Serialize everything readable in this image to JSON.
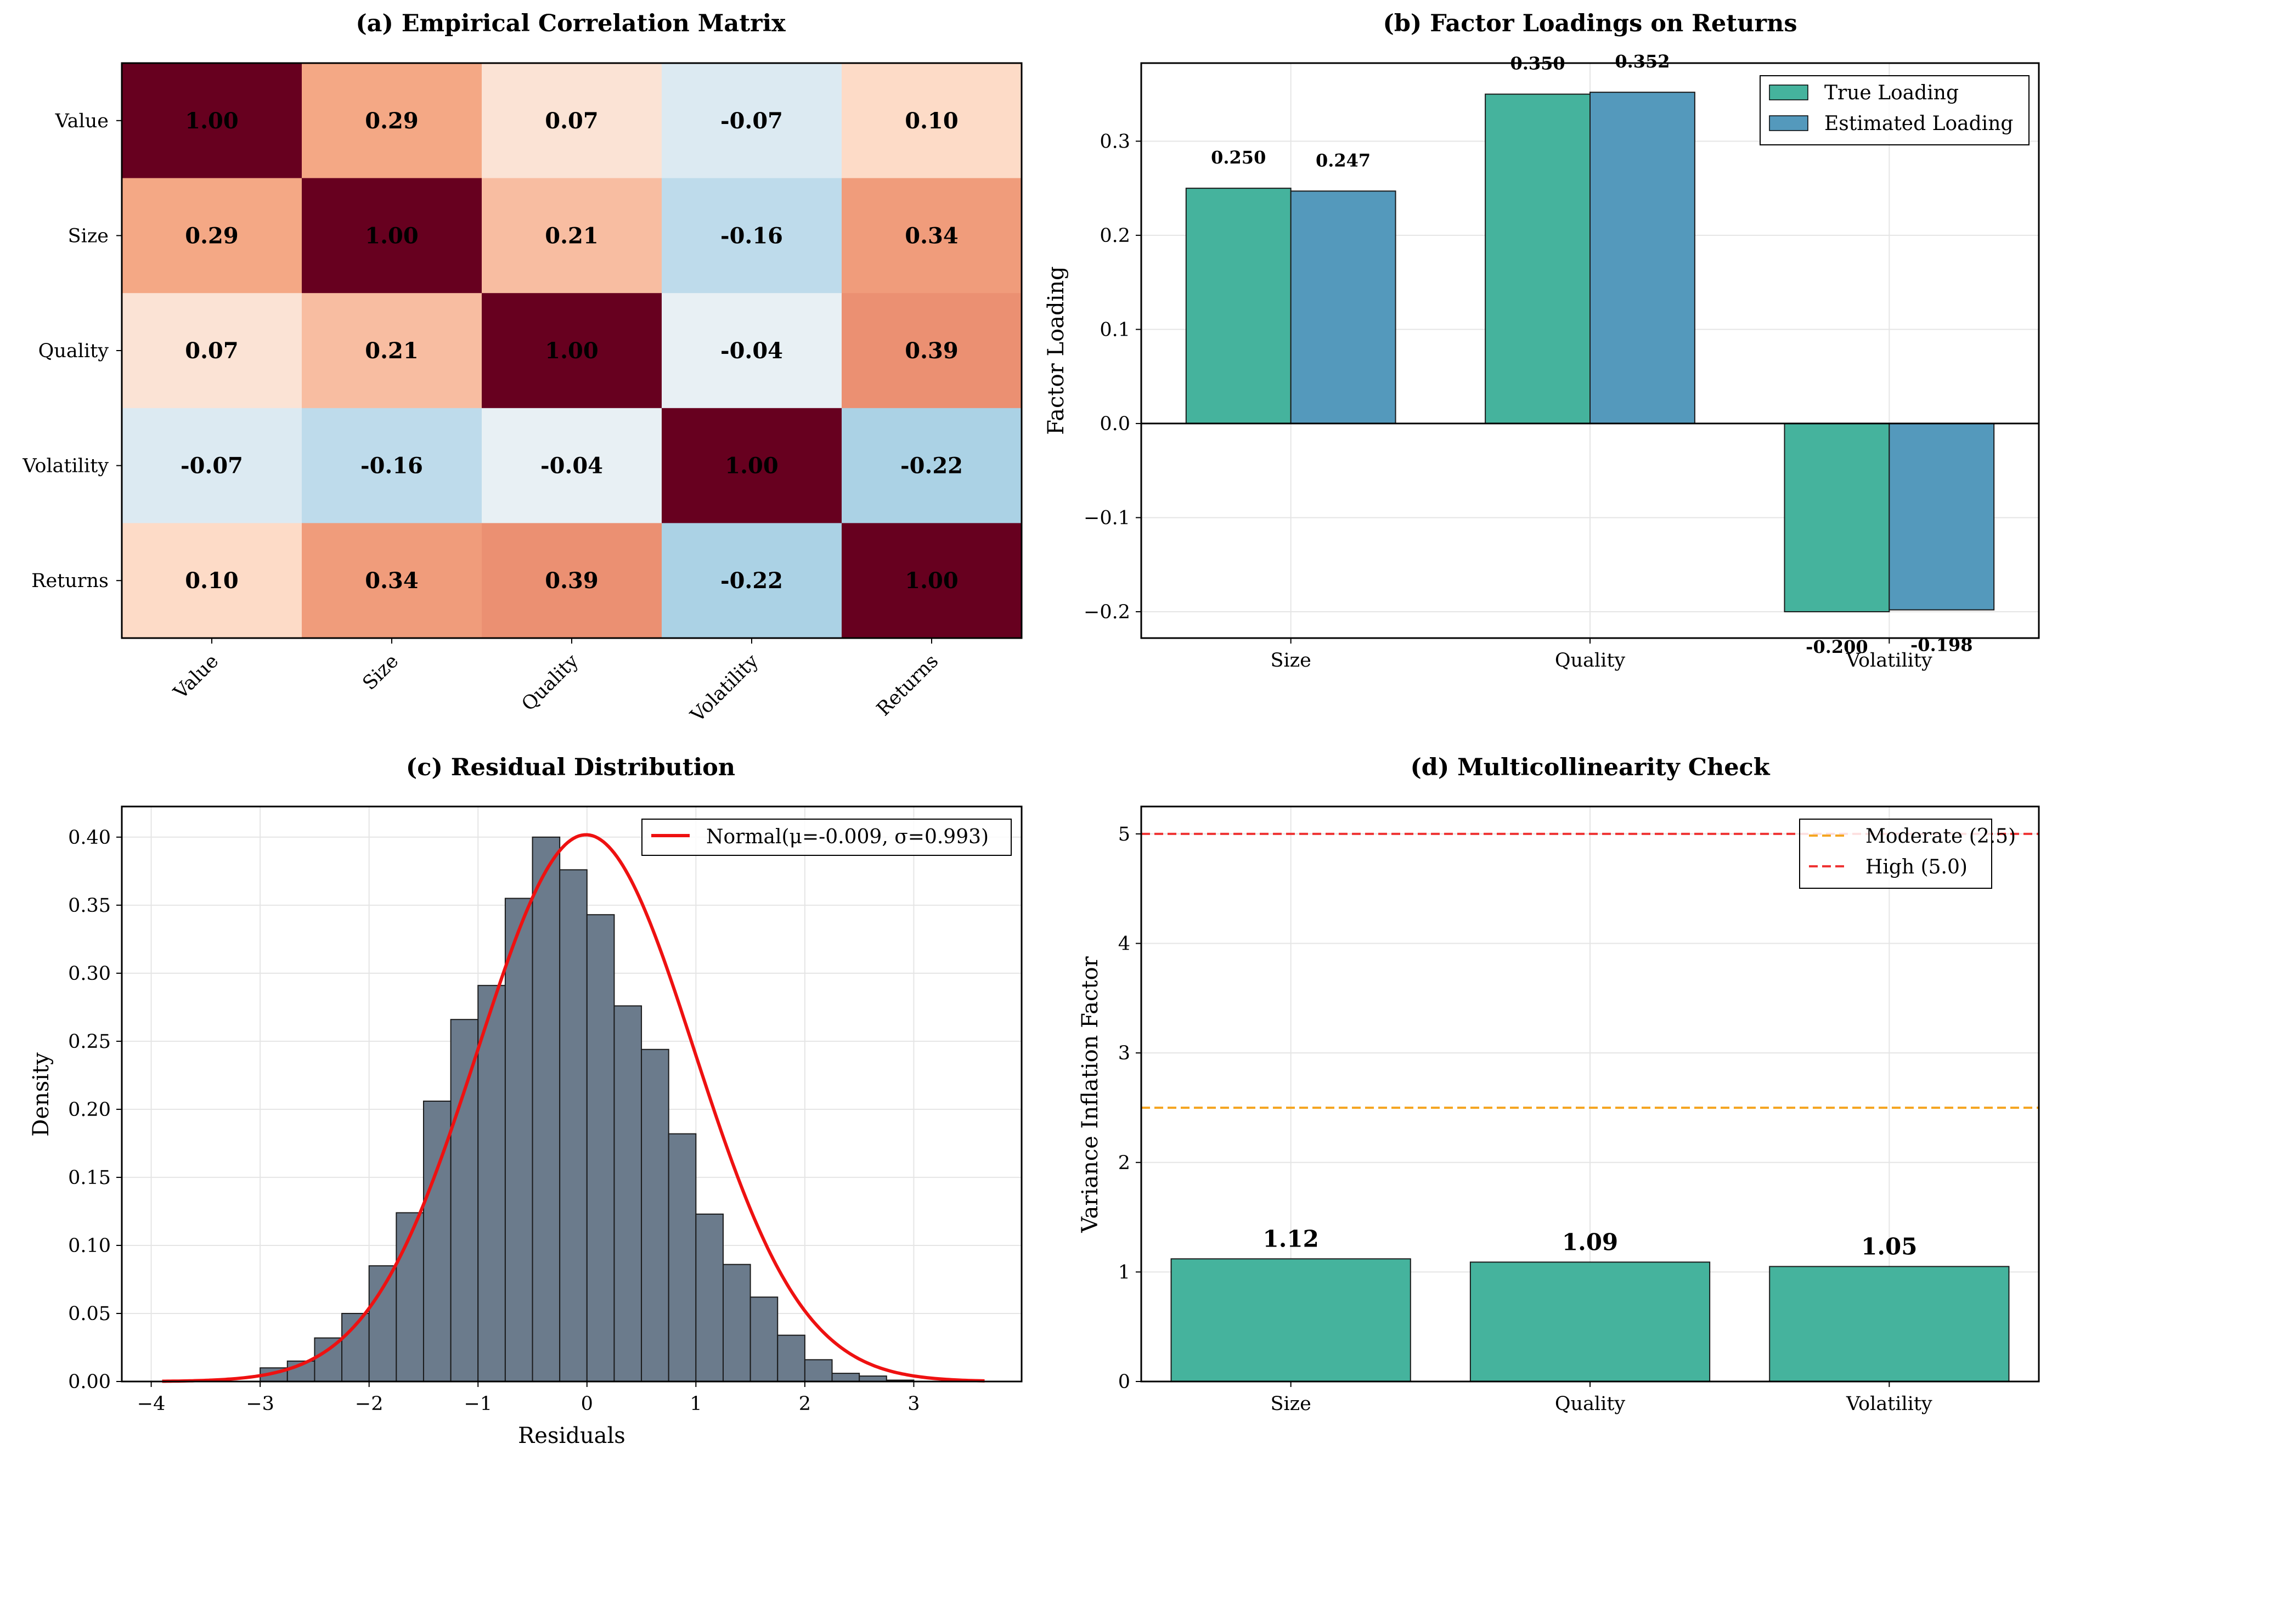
{
  "chart_data": [
    {
      "type": "heatmap",
      "title": "(a) Empirical Correlation Matrix",
      "labels": [
        "Value",
        "Size",
        "Quality",
        "Volatility",
        "Returns"
      ],
      "matrix": [
        [
          1.0,
          0.29,
          0.07,
          -0.07,
          0.1
        ],
        [
          0.29,
          1.0,
          0.21,
          -0.16,
          0.34
        ],
        [
          0.07,
          0.21,
          1.0,
          -0.04,
          0.39
        ],
        [
          -0.07,
          -0.16,
          -0.04,
          1.0,
          -0.22
        ],
        [
          0.1,
          0.34,
          0.39,
          -0.22,
          1.0
        ]
      ],
      "value_labels": [
        [
          "1.00",
          "0.29",
          "0.07",
          "-0.07",
          "0.10"
        ],
        [
          "0.29",
          "1.00",
          "0.21",
          "-0.16",
          "0.34"
        ],
        [
          "0.07",
          "0.21",
          "1.00",
          "-0.04",
          "0.39"
        ],
        [
          "-0.07",
          "-0.16",
          "-0.04",
          "1.00",
          "-0.22"
        ],
        [
          "0.10",
          "0.34",
          "0.39",
          "-0.22",
          "1.00"
        ]
      ],
      "colormap": "diverging red-blue",
      "clim": [
        -1,
        1
      ]
    },
    {
      "type": "bar",
      "title": "(b) Factor Loadings on Returns",
      "categories": [
        "Size",
        "Quality",
        "Volatility"
      ],
      "series": [
        {
          "name": "True Loading",
          "values": [
            0.25,
            0.35,
            -0.2
          ],
          "labels": [
            "0.250",
            "0.350",
            "-0.200"
          ],
          "color": "#45b39d"
        },
        {
          "name": "Estimated Loading",
          "values": [
            0.247,
            0.352,
            -0.198
          ],
          "labels": [
            "0.247",
            "0.352",
            "-0.198"
          ],
          "color": "#5499bc"
        }
      ],
      "ylabel": "Factor Loading",
      "xlabel": "",
      "ylim": [
        -0.228,
        0.383
      ],
      "yticks": [
        -0.2,
        -0.1,
        0.0,
        0.1,
        0.2,
        0.3
      ],
      "ytick_labels": [
        "−0.2",
        "−0.1",
        "0.0",
        "0.1",
        "0.2",
        "0.3"
      ],
      "legend": "top-right",
      "grid": true
    },
    {
      "type": "bar",
      "title": "(c) Residual Distribution",
      "subtype": "histogram",
      "bins": {
        "start": -3.0,
        "width": 0.25,
        "density": [
          0.01,
          0.015,
          0.032,
          0.05,
          0.085,
          0.124,
          0.206,
          0.266,
          0.291,
          0.355,
          0.4,
          0.376,
          0.343,
          0.276,
          0.244,
          0.182,
          0.123,
          0.086,
          0.062,
          0.034,
          0.016,
          0.006,
          0.004,
          0.001
        ]
      },
      "fit": {
        "name": "Normal(μ=-0.009, σ=0.993)",
        "mu": -0.009,
        "sigma": 0.993,
        "x_range": [
          -3.9,
          3.65
        ],
        "color": "#ee1111"
      },
      "xlabel": "Residuals",
      "ylabel": "Density",
      "xlim": [
        -4.27,
        3.99
      ],
      "ylim": [
        0,
        0.4225
      ],
      "xticks": [
        -4,
        -3,
        -2,
        -1,
        0,
        1,
        2,
        3
      ],
      "xtick_labels": [
        "−4",
        "−3",
        "−2",
        "−1",
        "0",
        "1",
        "2",
        "3"
      ],
      "yticks": [
        0.0,
        0.05,
        0.1,
        0.15,
        0.2,
        0.25,
        0.3,
        0.35,
        0.4
      ],
      "ytick_labels": [
        "0.00",
        "0.05",
        "0.10",
        "0.15",
        "0.20",
        "0.25",
        "0.30",
        "0.35",
        "0.40"
      ],
      "bar_color": "#6b7b8c",
      "legend": "top-right",
      "grid": true
    },
    {
      "type": "bar",
      "title": "(d) Multicollinearity Check",
      "categories": [
        "Size",
        "Quality",
        "Volatility"
      ],
      "values": [
        1.12,
        1.09,
        1.05
      ],
      "value_labels": [
        "1.12",
        "1.09",
        "1.05"
      ],
      "bar_color": "#45b39d",
      "ylabel": "Variance Inflation Factor",
      "xlabel": "",
      "ylim": [
        0,
        5.25
      ],
      "yticks": [
        0,
        1,
        2,
        3,
        4,
        5
      ],
      "ytick_labels": [
        "0",
        "1",
        "2",
        "3",
        "4",
        "5"
      ],
      "reference_lines": [
        {
          "name": "Moderate (2.5)",
          "y": 2.5,
          "color": "#f5a623"
        },
        {
          "name": "High (5.0)",
          "y": 5.0,
          "color": "#ee3333"
        }
      ],
      "legend": "top-right",
      "grid": true
    }
  ]
}
